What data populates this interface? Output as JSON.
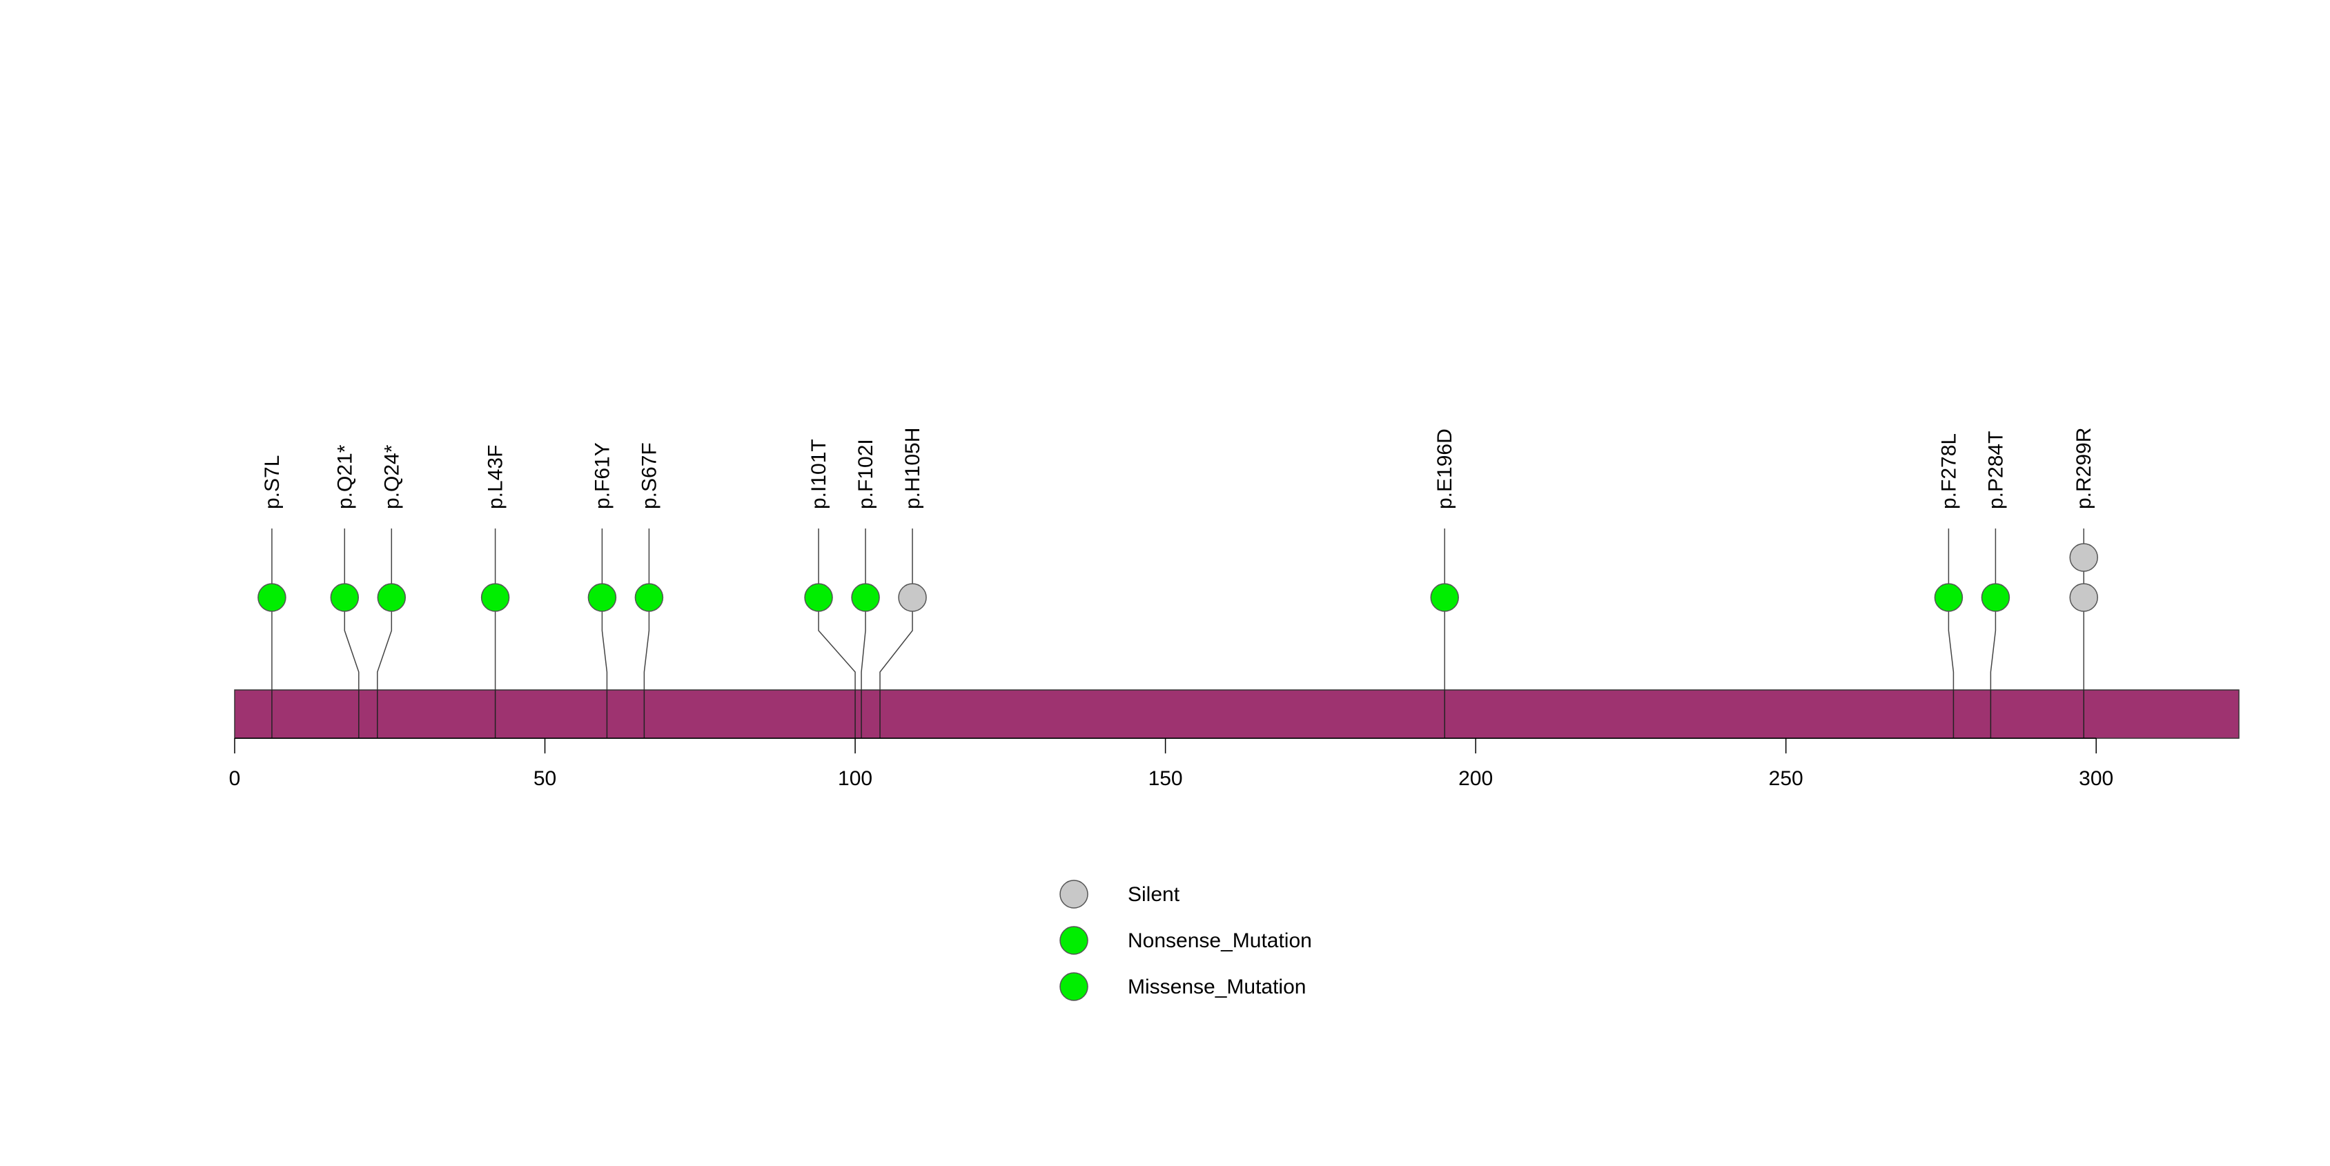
{
  "chart_data": {
    "type": "lollipop",
    "title": "",
    "xlabel": "",
    "ylabel": "",
    "xlim": [
      0,
      323
    ],
    "x_ticks": [
      0,
      50,
      100,
      150,
      200,
      250,
      300
    ],
    "colors": {
      "protein_bar": "#9e3370",
      "Silent": "#c8c8c8",
      "Nonsense_Mutation": "#00ee00",
      "Missense_Mutation": "#00ee00"
    },
    "mutations": [
      {
        "label": "p.S7L",
        "position": 6,
        "class": "Missense_Mutation",
        "count": 1
      },
      {
        "label": "p.Q21*",
        "position": 20,
        "class": "Nonsense_Mutation",
        "count": 1
      },
      {
        "label": "p.Q24*",
        "position": 23,
        "class": "Nonsense_Mutation",
        "count": 1
      },
      {
        "label": "p.L43F",
        "position": 42,
        "class": "Missense_Mutation",
        "count": 1
      },
      {
        "label": "p.F61Y",
        "position": 60,
        "class": "Missense_Mutation",
        "count": 1
      },
      {
        "label": "p.S67F",
        "position": 66,
        "class": "Missense_Mutation",
        "count": 1
      },
      {
        "label": "p.I101T",
        "position": 100,
        "class": "Missense_Mutation",
        "count": 1
      },
      {
        "label": "p.F102I",
        "position": 101,
        "class": "Missense_Mutation",
        "count": 1
      },
      {
        "label": "p.H105H",
        "position": 104,
        "class": "Silent",
        "count": 1
      },
      {
        "label": "p.E196D",
        "position": 195,
        "class": "Missense_Mutation",
        "count": 1
      },
      {
        "label": "p.F278L",
        "position": 277,
        "class": "Missense_Mutation",
        "count": 1
      },
      {
        "label": "p.P284T",
        "position": 283,
        "class": "Missense_Mutation",
        "count": 1
      },
      {
        "label": "p.R299R",
        "position": 298,
        "class": "Silent",
        "count": 2
      }
    ],
    "legend": [
      {
        "label": "Silent",
        "class": "Silent"
      },
      {
        "label": "Nonsense_Mutation",
        "class": "Nonsense_Mutation"
      },
      {
        "label": "Missense_Mutation",
        "class": "Missense_Mutation"
      }
    ],
    "legend_position": "bottom-center"
  }
}
